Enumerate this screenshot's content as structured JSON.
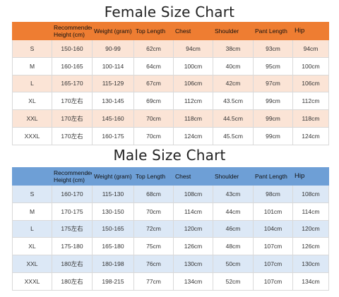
{
  "female": {
    "title": "Female Size Chart",
    "headers": [
      "",
      "Recommended Height (cm)",
      "Weight (gram)",
      "Top Length",
      "Chest",
      "Shoulder",
      "Pant Length",
      "Hip"
    ],
    "rows": [
      [
        "S",
        "150-160",
        "90-99",
        "62cm",
        "94cm",
        "38cm",
        "93cm",
        "94cm"
      ],
      [
        "M",
        "160-165",
        "100-114",
        "64cm",
        "100cm",
        "40cm",
        "95cm",
        "100cm"
      ],
      [
        "L",
        "165-170",
        "115-129",
        "67cm",
        "106cm",
        "42cm",
        "97cm",
        "106cm"
      ],
      [
        "XL",
        "170左右",
        "130-145",
        "69cm",
        "112cm",
        "43.5cm",
        "99cm",
        "112cm"
      ],
      [
        "XXL",
        "170左右",
        "145-160",
        "70cm",
        "118cm",
        "44.5cm",
        "99cm",
        "118cm"
      ],
      [
        "XXXL",
        "170左右",
        "160-175",
        "70cm",
        "124cm",
        "45.5cm",
        "99cm",
        "124cm"
      ]
    ],
    "header_color": "#ee7d32",
    "stripe_color": "#fbe4d6"
  },
  "male": {
    "title": "Male Size Chart",
    "headers": [
      "",
      "Recommended Height (cm)",
      "Weight (gram)",
      "Top Length",
      "Chest",
      "Shoulder",
      "Pant Length",
      "Hip"
    ],
    "rows": [
      [
        "S",
        "160-170",
        "115-130",
        "68cm",
        "108cm",
        "43cm",
        "98cm",
        "108cm"
      ],
      [
        "M",
        "170-175",
        "130-150",
        "70cm",
        "114cm",
        "44cm",
        "101cm",
        "114cm"
      ],
      [
        "L",
        "175左右",
        "150-165",
        "72cm",
        "120cm",
        "46cm",
        "104cm",
        "120cm"
      ],
      [
        "XL",
        "175-180",
        "165-180",
        "75cm",
        "126cm",
        "48cm",
        "107cm",
        "126cm"
      ],
      [
        "XXL",
        "180左右",
        "180-198",
        "76cm",
        "130cm",
        "50cm",
        "107cm",
        "130cm"
      ],
      [
        "XXXL",
        "180左右",
        "198-215",
        "77cm",
        "134cm",
        "52cm",
        "107cm",
        "134cm"
      ]
    ],
    "header_color": "#6e9fd6",
    "stripe_color": "#dce8f6"
  }
}
